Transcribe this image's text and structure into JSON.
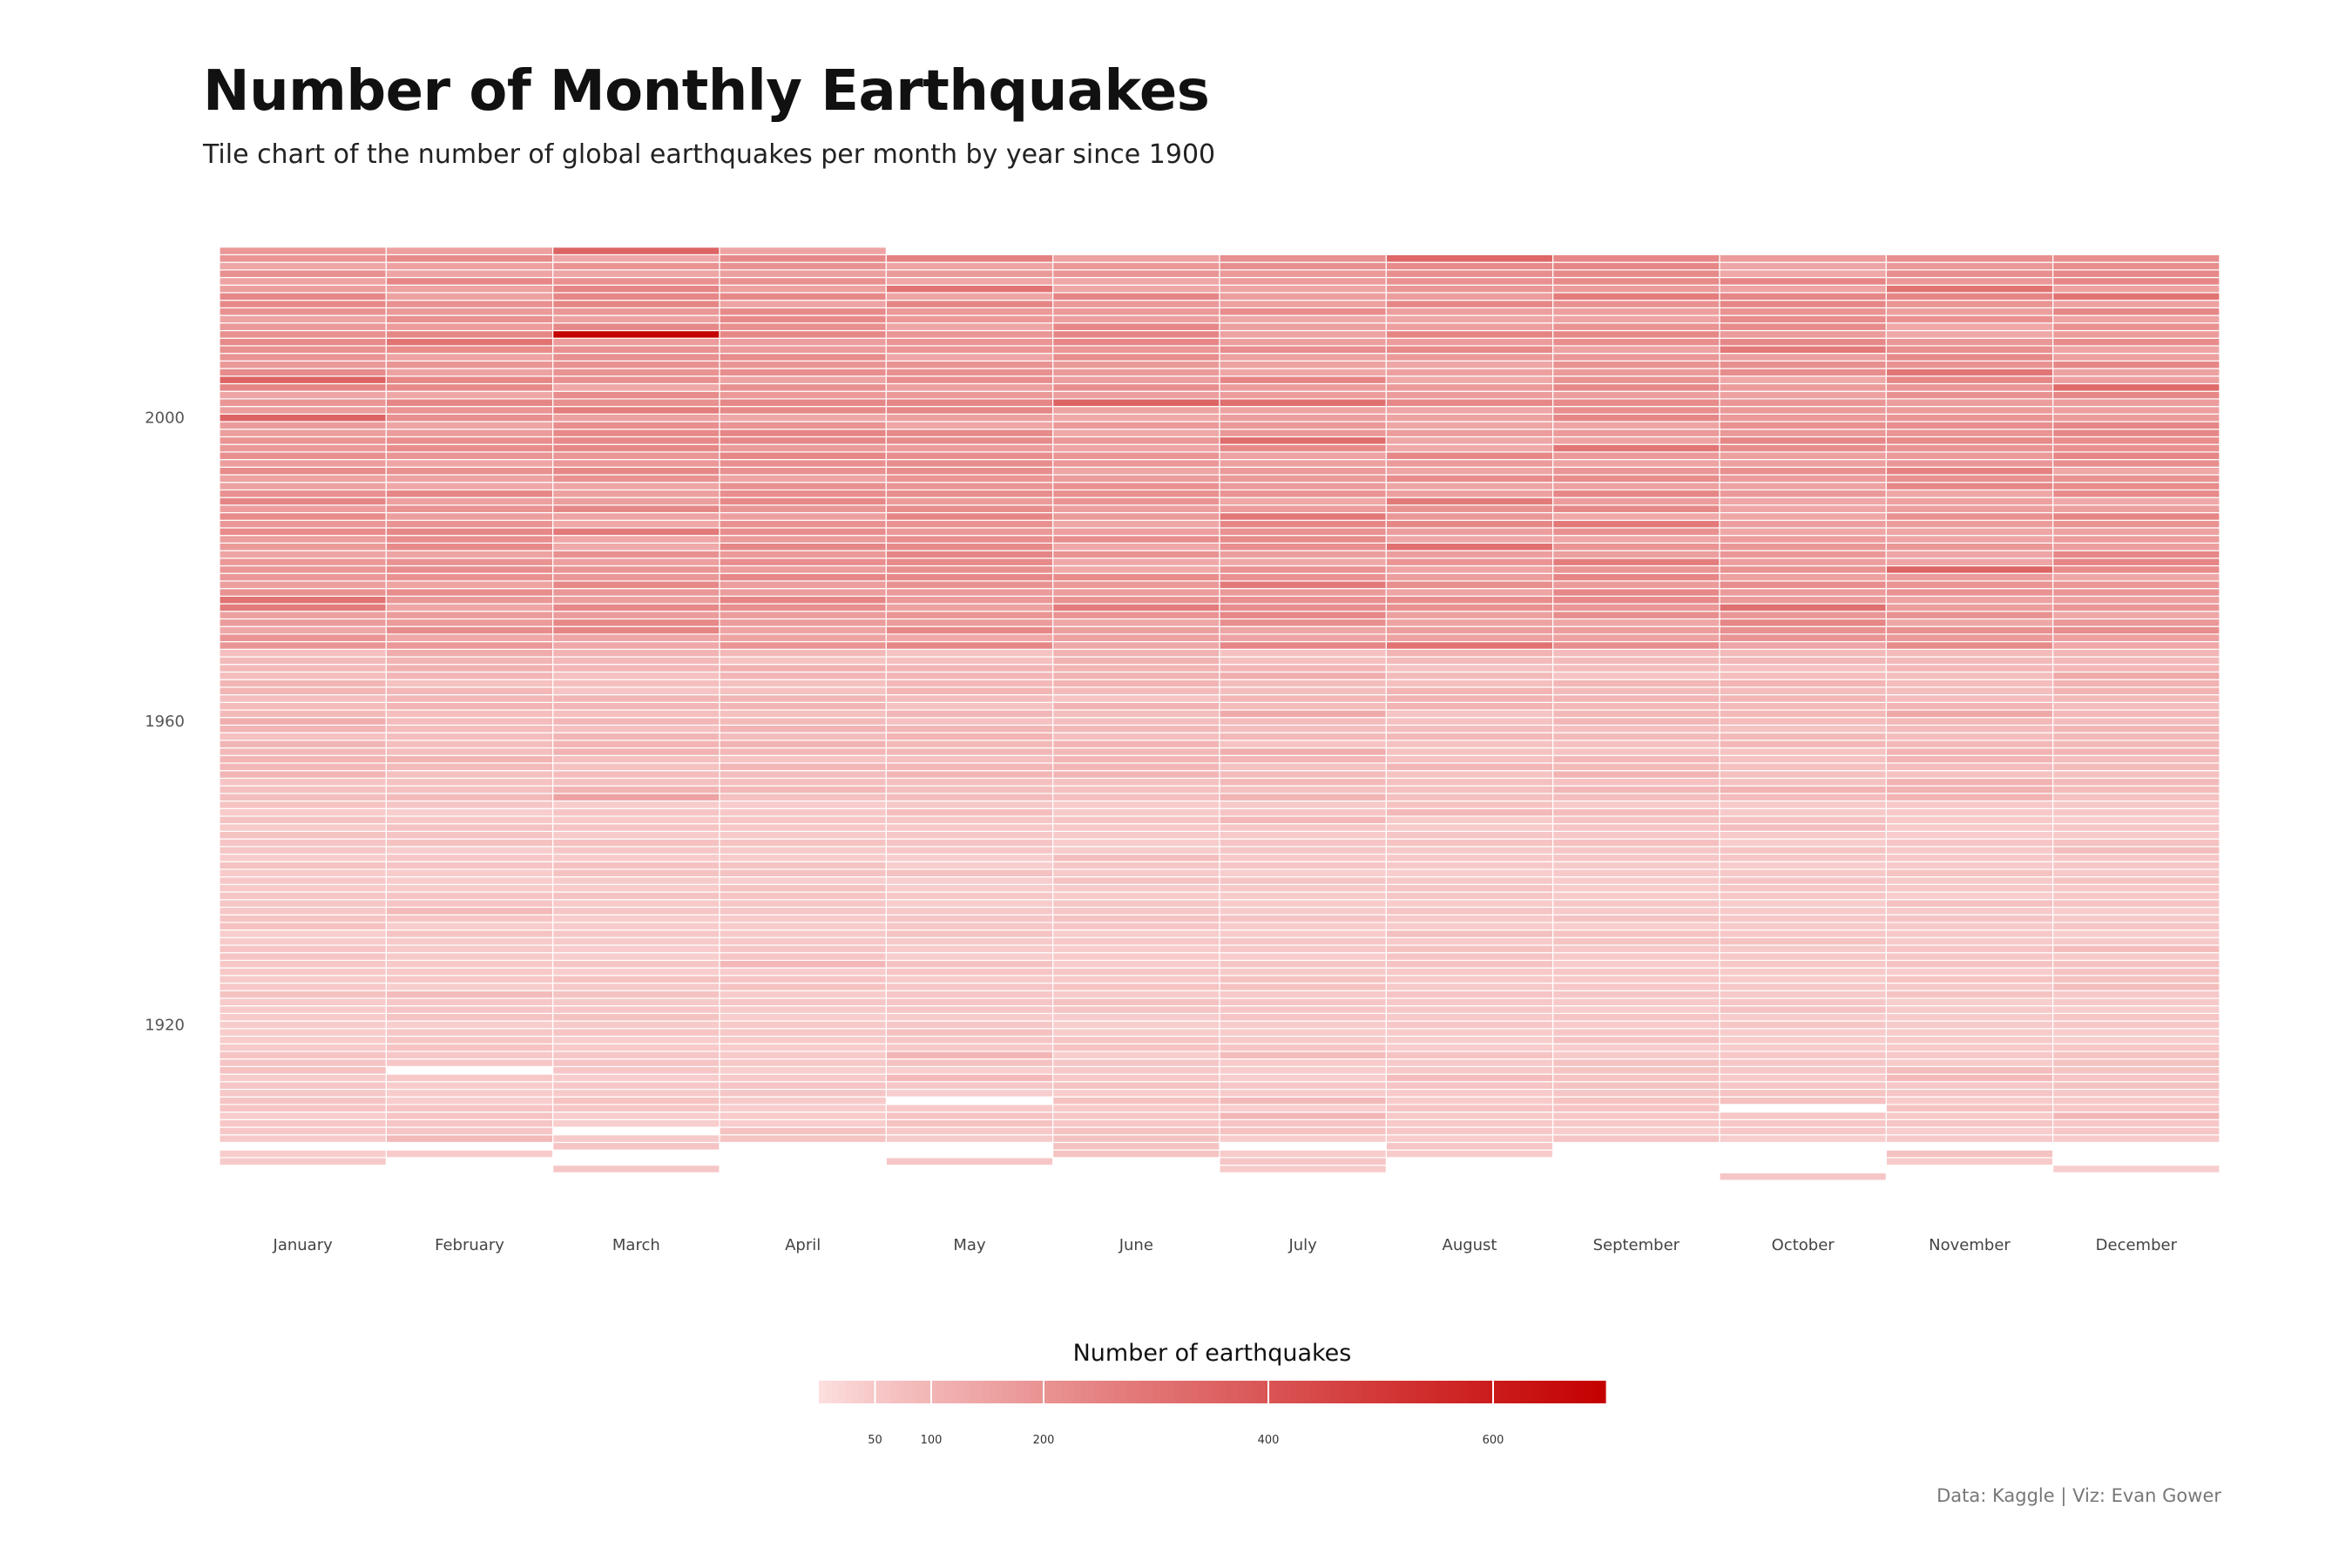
{
  "title": "Number of Monthly Earthquakes",
  "subtitle": "Tile chart of the number of global earthquakes per month by year since 1900",
  "caption": "Data: Kaggle | Viz: Evan Gower",
  "colors": {
    "low": "#fde0e0",
    "high": "#c40000",
    "background": "#ffffff",
    "tile_border": "#ffffff"
  },
  "chart_data": {
    "type": "heatmap",
    "x": [
      "January",
      "February",
      "March",
      "April",
      "May",
      "June",
      "July",
      "August",
      "September",
      "October",
      "November",
      "December"
    ],
    "y_ticks": [
      1920,
      1960,
      2000
    ],
    "y_range": [
      1900,
      2023
    ],
    "legend": {
      "title": "Number of earthquakes",
      "ticks": [
        50,
        100,
        200,
        400,
        600
      ],
      "range": [
        0,
        700
      ],
      "placement": "bottom"
    },
    "start_years": [
      1902,
      1903,
      1901,
      1905,
      1902,
      1903,
      1901,
      1903,
      1905,
      1900,
      1902,
      1901
    ],
    "end_years": [
      2022,
      2022,
      2022,
      2022,
      2021,
      2021,
      2021,
      2021,
      2021,
      2021,
      2021,
      2021
    ],
    "missing_cells": [
      {
        "month": "January",
        "years": [
          1904
        ]
      },
      {
        "month": "February",
        "years": [
          1904,
          1914
        ]
      },
      {
        "month": "March",
        "years": [
          1902,
          1903,
          1906
        ]
      },
      {
        "month": "May",
        "years": [
          1903,
          1904,
          1910
        ]
      },
      {
        "month": "July",
        "years": [
          1904
        ]
      },
      {
        "month": "October",
        "years": [
          1901,
          1902,
          1903,
          1904,
          1909
        ]
      },
      {
        "month": "November",
        "years": [
          1904
        ]
      },
      {
        "month": "December",
        "years": [
          1902,
          1903,
          1904
        ]
      }
    ],
    "period_levels": [
      {
        "years": [
          1900,
          1949
        ],
        "typical_count": 50
      },
      {
        "years": [
          1950,
          1969
        ],
        "typical_count": 80
      },
      {
        "years": [
          1970,
          2022
        ],
        "typical_count": 180
      }
    ],
    "highlights": [
      {
        "month": "March",
        "year": 2011,
        "count": 700
      },
      {
        "month": "January",
        "year": 2005,
        "count": 350
      },
      {
        "month": "March",
        "year": 2022,
        "count": 350
      },
      {
        "month": "August",
        "year": 2021,
        "count": 340
      },
      {
        "month": "December",
        "year": 2004,
        "count": 330
      },
      {
        "month": "February",
        "year": 2010,
        "count": 300
      },
      {
        "month": "January",
        "year": 1976,
        "count": 300
      },
      {
        "month": "December",
        "year": 2016,
        "count": 300
      },
      {
        "month": "November",
        "year": 2006,
        "count": 290
      },
      {
        "month": "March",
        "year": 1985,
        "count": 280
      },
      {
        "month": "October",
        "year": 2009,
        "count": 280
      },
      {
        "month": "June",
        "year": 1975,
        "count": 270
      },
      {
        "month": "September",
        "year": 2016,
        "count": 270
      }
    ]
  }
}
